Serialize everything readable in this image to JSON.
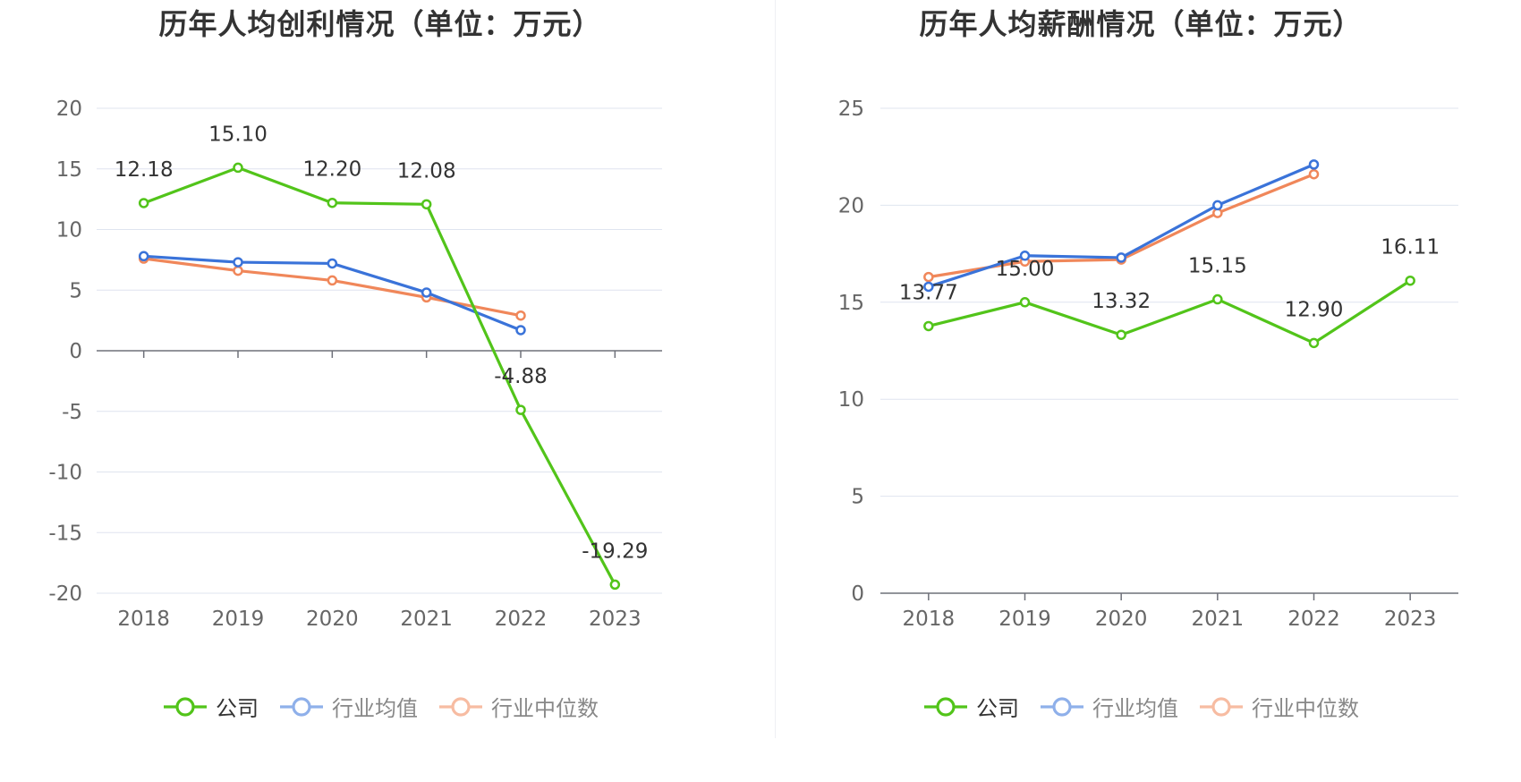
{
  "chart_data": [
    {
      "type": "line",
      "title": "历年人均创利情况（单位：万元）",
      "categories": [
        "2018",
        "2019",
        "2020",
        "2021",
        "2022",
        "2023"
      ],
      "ylim": [
        -20,
        20
      ],
      "yticks": [
        20,
        15,
        10,
        5,
        0,
        -5,
        -10,
        -15,
        -20
      ],
      "grid": true,
      "legend_position": "bottom",
      "series": [
        {
          "name": "公司",
          "color": "#52c41a",
          "values": [
            12.18,
            15.1,
            12.2,
            12.08,
            -4.88,
            -19.29
          ],
          "labels": [
            "12.18",
            "15.10",
            "12.20",
            "12.08",
            "-4.88",
            "-19.29"
          ]
        },
        {
          "name": "行业均值",
          "color": "#3a73d9",
          "values": [
            7.8,
            7.3,
            7.2,
            4.8,
            1.7,
            null
          ]
        },
        {
          "name": "行业中位数",
          "color": "#f0875a",
          "values": [
            7.6,
            6.6,
            5.8,
            4.4,
            2.9,
            null
          ]
        }
      ]
    },
    {
      "type": "line",
      "title": "历年人均薪酬情况（单位：万元）",
      "categories": [
        "2018",
        "2019",
        "2020",
        "2021",
        "2022",
        "2023"
      ],
      "ylim": [
        0,
        25
      ],
      "yticks": [
        25,
        20,
        15,
        10,
        5,
        0
      ],
      "grid": true,
      "legend_position": "bottom",
      "series": [
        {
          "name": "公司",
          "color": "#52c41a",
          "values": [
            13.77,
            15.0,
            13.32,
            15.15,
            12.9,
            16.11
          ],
          "labels": [
            "13.77",
            "15.00",
            "13.32",
            "15.15",
            "12.90",
            "16.11"
          ]
        },
        {
          "name": "行业均值",
          "color": "#3a73d9",
          "values": [
            15.8,
            17.4,
            17.3,
            20.0,
            22.1,
            null
          ]
        },
        {
          "name": "行业中位数",
          "color": "#f0875a",
          "values": [
            16.3,
            17.1,
            17.2,
            19.6,
            21.6,
            null
          ]
        }
      ]
    }
  ],
  "legend": {
    "items": [
      {
        "label": "公司",
        "color": "#52c41a",
        "light": "#52c41a"
      },
      {
        "label": "行业均值",
        "color": "#3a73d9",
        "light": "#8fb0ea"
      },
      {
        "label": "行业中位数",
        "color": "#f0875a",
        "light": "#f7bca2"
      }
    ]
  }
}
